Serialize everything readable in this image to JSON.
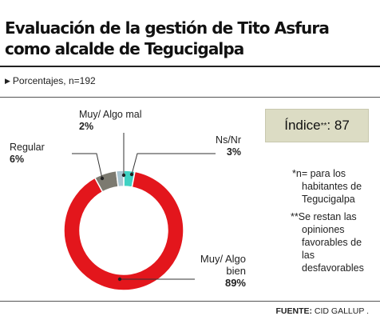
{
  "title_line1": "Evaluación de la gestión de  Tito Asfura",
  "title_line2": "como alcalde de Tegucigalpa",
  "subtitle": "Porcentajes, n=192",
  "index": {
    "label": "Índice",
    "mark": "**",
    "suffix": ":",
    "value": "87"
  },
  "notes": [
    [
      "*n= para los",
      "habitantes de",
      "Tegucigalpa"
    ],
    [
      "**Se restan las",
      "opiniones",
      "favorables de",
      "las",
      "desfavorables"
    ]
  ],
  "source": {
    "label": "FUENTE:",
    "value": "CID GALLUP ."
  },
  "colors": {
    "good": "#e3161c",
    "regular": "#7c7a70",
    "bad": "#a9c6d2",
    "nsnr": "#3fd2c3"
  },
  "chart_data": {
    "type": "pie",
    "donut": true,
    "title": "Evaluación de la gestión de  Tito Asfura como alcalde de Tegucigalpa",
    "slices": [
      {
        "label": "Muy/ Algo bien",
        "value": 89,
        "display": "89%",
        "color": "#e3161c"
      },
      {
        "label": "Regular",
        "value": 6,
        "display": "6%",
        "color": "#7c7a70"
      },
      {
        "label": "Muy/ Algo mal",
        "value": 2,
        "display": "2%",
        "color": "#a9c6d2"
      },
      {
        "label": "Ns/Nr",
        "value": 3,
        "display": "3%",
        "color": "#3fd2c3"
      }
    ]
  }
}
